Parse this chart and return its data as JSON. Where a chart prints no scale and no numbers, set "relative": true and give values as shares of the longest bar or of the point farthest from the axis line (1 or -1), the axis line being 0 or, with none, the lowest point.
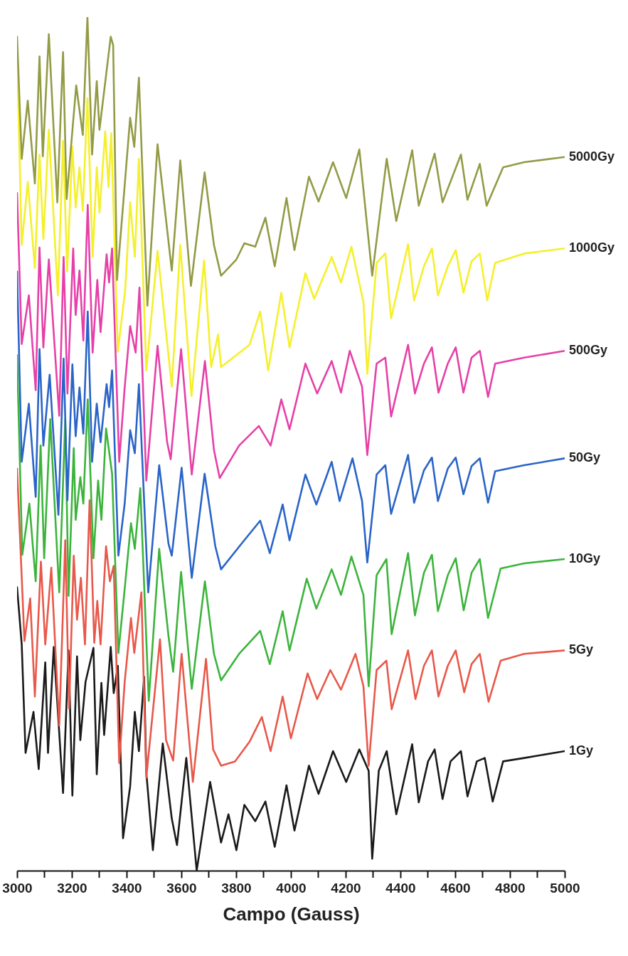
{
  "chart_data": {
    "type": "line",
    "xlabel": "Campo (Gauss)",
    "relative": true,
    "xlim": [
      3000,
      5000
    ],
    "xticks": [
      3000,
      {
        "value": 3100,
        "label": null
      },
      3200,
      {
        "value": 3300,
        "label": null
      },
      3400,
      {
        "value": 3500,
        "label": null
      },
      3600,
      {
        "value": 3700,
        "label": null
      },
      3800,
      {
        "value": 3900,
        "label": null
      },
      4000,
      {
        "value": 4100,
        "label": null
      },
      4200,
      {
        "value": 4300,
        "label": null
      },
      4400,
      {
        "value": 4500,
        "label": null
      },
      4600,
      {
        "value": 4700,
        "label": null
      },
      4800,
      {
        "value": 4900,
        "label": null
      },
      5000
    ],
    "series": [
      {
        "name": "1Gy",
        "color": "#1a1a1a",
        "x": [
          5000,
          4852,
          4775,
          4737,
          4708,
          4679,
          4645,
          4621,
          4583,
          4554,
          4525,
          4501,
          4467,
          4443,
          4385,
          4350,
          4321,
          4297,
          4284,
          4250,
          4202,
          4154,
          4101,
          4066,
          4013,
          3984,
          3941,
          3907,
          3870,
          3830,
          3801,
          3772,
          3745,
          3705,
          3656,
          3618,
          3584,
          3565,
          3532,
          3496,
          3472,
          3464,
          3445,
          3430,
          3413,
          3387,
          3368,
          3353,
          3342,
          3318,
          3308,
          3291,
          3279,
          3250,
          3231,
          3219,
          3202,
          3188,
          3168,
          3134,
          3113,
          3103,
          3079,
          3060,
          3031,
          3017,
          3000
        ],
        "values": [
          0.14,
          0.132,
          0.128,
          0.081,
          0.132,
          0.128,
          0.087,
          0.14,
          0.128,
          0.084,
          0.142,
          0.128,
          0.08,
          0.148,
          0.066,
          0.14,
          0.117,
          0.014,
          0.117,
          0.142,
          0.104,
          0.14,
          0.09,
          0.123,
          0.047,
          0.1,
          0.028,
          0.081,
          0.058,
          0.077,
          0.024,
          0.066,
          0.033,
          0.104,
          0.0,
          0.132,
          0.03,
          0.061,
          0.149,
          0.024,
          0.115,
          0.227,
          0.14,
          0.186,
          0.099,
          0.038,
          0.24,
          0.208,
          0.262,
          0.159,
          0.22,
          0.113,
          0.261,
          0.221,
          0.153,
          0.251,
          0.088,
          0.258,
          0.091,
          0.262,
          0.138,
          0.244,
          0.119,
          0.186,
          0.138,
          0.265,
          0.332
        ]
      },
      {
        "name": "5Gy",
        "color": "#e8584a",
        "x": [
          5000,
          4852,
          4766,
          4722,
          4690,
          4660,
          4633,
          4602,
          4573,
          4539,
          4515,
          4486,
          4455,
          4428,
          4368,
          4349,
          4313,
          4284,
          4265,
          4236,
          4183,
          4144,
          4096,
          4061,
          4000,
          3970,
          3926,
          3894,
          3849,
          3796,
          3745,
          3716,
          3690,
          3642,
          3601,
          3570,
          3544,
          3522,
          3472,
          3454,
          3428,
          3416,
          3393,
          3373,
          3353,
          3339,
          3325,
          3305,
          3293,
          3282,
          3265,
          3248,
          3233,
          3219,
          3207,
          3190,
          3176,
          3154,
          3125,
          3103,
          3087,
          3065,
          3048,
          3027,
          3000
        ],
        "values": [
          0.258,
          0.254,
          0.246,
          0.198,
          0.254,
          0.242,
          0.209,
          0.258,
          0.24,
          0.204,
          0.258,
          0.24,
          0.201,
          0.258,
          0.189,
          0.246,
          0.235,
          0.123,
          0.216,
          0.254,
          0.212,
          0.235,
          0.201,
          0.231,
          0.155,
          0.204,
          0.14,
          0.18,
          0.151,
          0.128,
          0.123,
          0.142,
          0.248,
          0.104,
          0.254,
          0.129,
          0.153,
          0.271,
          0.109,
          0.326,
          0.255,
          0.296,
          0.221,
          0.126,
          0.357,
          0.339,
          0.38,
          0.265,
          0.316,
          0.267,
          0.434,
          0.265,
          0.343,
          0.294,
          0.369,
          0.19,
          0.387,
          0.17,
          0.355,
          0.265,
          0.362,
          0.204,
          0.319,
          0.269,
          0.471
        ]
      },
      {
        "name": "10Gy",
        "color": "#3cb43c",
        "x": [
          5000,
          4852,
          4766,
          4720,
          4690,
          4660,
          4631,
          4602,
          4573,
          4537,
          4515,
          4486,
          4453,
          4428,
          4368,
          4349,
          4313,
          4284,
          4265,
          4221,
          4183,
          4149,
          4093,
          4058,
          3995,
          3970,
          3923,
          3888,
          3811,
          3745,
          3719,
          3686,
          3638,
          3599,
          3570,
          3553,
          3519,
          3481,
          3450,
          3430,
          3416,
          3393,
          3370,
          3347,
          3325,
          3308,
          3296,
          3279,
          3258,
          3242,
          3231,
          3214,
          3207,
          3188,
          3176,
          3154,
          3121,
          3099,
          3086,
          3068,
          3045,
          3019,
          3000
        ],
        "values": [
          0.365,
          0.36,
          0.354,
          0.296,
          0.365,
          0.349,
          0.305,
          0.366,
          0.346,
          0.304,
          0.37,
          0.349,
          0.299,
          0.372,
          0.277,
          0.365,
          0.346,
          0.216,
          0.323,
          0.368,
          0.323,
          0.353,
          0.307,
          0.342,
          0.258,
          0.304,
          0.242,
          0.281,
          0.254,
          0.223,
          0.254,
          0.339,
          0.213,
          0.35,
          0.233,
          0.275,
          0.377,
          0.199,
          0.448,
          0.377,
          0.407,
          0.33,
          0.255,
          0.465,
          0.518,
          0.411,
          0.457,
          0.366,
          0.552,
          0.43,
          0.461,
          0.411,
          0.495,
          0.322,
          0.529,
          0.326,
          0.529,
          0.366,
          0.498,
          0.339,
          0.43,
          0.37,
          0.604
        ]
      },
      {
        "name": "50Gy",
        "color": "#2a64c8",
        "x": [
          5000,
          4852,
          4746,
          4720,
          4690,
          4660,
          4630,
          4602,
          4573,
          4537,
          4515,
          4486,
          4450,
          4428,
          4366,
          4345,
          4313,
          4279,
          4260,
          4225,
          4178,
          4149,
          4093,
          4053,
          3995,
          3970,
          3923,
          3888,
          3822,
          3745,
          3724,
          3685,
          3638,
          3601,
          3565,
          3553,
          3519,
          3479,
          3445,
          3430,
          3413,
          3393,
          3370,
          3347,
          3336,
          3327,
          3305,
          3291,
          3274,
          3258,
          3242,
          3228,
          3214,
          3202,
          3184,
          3170,
          3151,
          3119,
          3096,
          3082,
          3068,
          3043,
          3017,
          3000
        ],
        "values": [
          0.483,
          0.475,
          0.468,
          0.431,
          0.483,
          0.474,
          0.441,
          0.484,
          0.471,
          0.433,
          0.484,
          0.469,
          0.431,
          0.487,
          0.418,
          0.475,
          0.464,
          0.361,
          0.433,
          0.483,
          0.433,
          0.479,
          0.429,
          0.464,
          0.387,
          0.429,
          0.372,
          0.41,
          0.384,
          0.353,
          0.38,
          0.465,
          0.343,
          0.472,
          0.369,
          0.383,
          0.475,
          0.326,
          0.57,
          0.489,
          0.516,
          0.43,
          0.369,
          0.586,
          0.543,
          0.57,
          0.502,
          0.547,
          0.479,
          0.655,
          0.512,
          0.566,
          0.509,
          0.593,
          0.434,
          0.6,
          0.417,
          0.581,
          0.498,
          0.611,
          0.438,
          0.547,
          0.479,
          0.702
        ]
      },
      {
        "name": "500Gy",
        "color": "#e640a8",
        "x": [
          5000,
          4852,
          4746,
          4720,
          4690,
          4660,
          4630,
          4602,
          4573,
          4539,
          4515,
          4486,
          4453,
          4428,
          4366,
          4345,
          4313,
          4279,
          4260,
          4215,
          4183,
          4149,
          4096,
          4053,
          3995,
          3965,
          3926,
          3883,
          3811,
          3740,
          3719,
          3686,
          3638,
          3599,
          3561,
          3548,
          3513,
          3472,
          3447,
          3433,
          3413,
          3393,
          3373,
          3347,
          3336,
          3327,
          3305,
          3293,
          3276,
          3258,
          3242,
          3228,
          3214,
          3205,
          3184,
          3170,
          3154,
          3116,
          3096,
          3082,
          3068,
          3043,
          3017,
          3000
        ],
        "values": [
          0.609,
          0.601,
          0.594,
          0.555,
          0.609,
          0.601,
          0.56,
          0.613,
          0.594,
          0.56,
          0.613,
          0.594,
          0.559,
          0.616,
          0.532,
          0.601,
          0.594,
          0.487,
          0.567,
          0.609,
          0.56,
          0.597,
          0.559,
          0.594,
          0.517,
          0.552,
          0.498,
          0.521,
          0.498,
          0.46,
          0.493,
          0.597,
          0.464,
          0.611,
          0.482,
          0.502,
          0.615,
          0.457,
          0.683,
          0.607,
          0.638,
          0.566,
          0.479,
          0.729,
          0.689,
          0.722,
          0.631,
          0.692,
          0.607,
          0.78,
          0.621,
          0.703,
          0.651,
          0.729,
          0.559,
          0.719,
          0.533,
          0.716,
          0.613,
          0.73,
          0.563,
          0.674,
          0.617,
          0.794
        ]
      },
      {
        "name": "1000Gy",
        "color": "#f5f02a",
        "x": [
          5000,
          4852,
          4746,
          4717,
          4690,
          4660,
          4630,
          4602,
          4573,
          4537,
          4515,
          4486,
          4450,
          4428,
          4366,
          4345,
          4313,
          4279,
          4265,
          4221,
          4183,
          4149,
          4085,
          4053,
          3995,
          3965,
          3917,
          3888,
          3849,
          3745,
          3734,
          3709,
          3683,
          3637,
          3596,
          3565,
          3544,
          3513,
          3472,
          3445,
          3430,
          3413,
          3395,
          3368,
          3344,
          3334,
          3322,
          3301,
          3291,
          3276,
          3257,
          3240,
          3228,
          3214,
          3202,
          3183,
          3168,
          3149,
          3116,
          3096,
          3082,
          3065,
          3039,
          3017,
          3000
        ],
        "values": [
          0.729,
          0.723,
          0.712,
          0.668,
          0.723,
          0.714,
          0.677,
          0.727,
          0.708,
          0.674,
          0.729,
          0.708,
          0.668,
          0.734,
          0.647,
          0.723,
          0.712,
          0.582,
          0.666,
          0.731,
          0.689,
          0.719,
          0.67,
          0.7,
          0.613,
          0.677,
          0.586,
          0.655,
          0.616,
          0.59,
          0.628,
          0.59,
          0.715,
          0.556,
          0.733,
          0.567,
          0.631,
          0.726,
          0.586,
          0.834,
          0.719,
          0.783,
          0.681,
          0.608,
          0.864,
          0.801,
          0.866,
          0.771,
          0.824,
          0.719,
          0.905,
          0.773,
          0.824,
          0.777,
          0.848,
          0.702,
          0.855,
          0.674,
          0.868,
          0.74,
          0.839,
          0.706,
          0.807,
          0.733,
          0.957
        ]
      },
      {
        "name": "5000Gy",
        "color": "#939b45",
        "x": [
          5000,
          4852,
          4775,
          4715,
          4690,
          4645,
          4621,
          4554,
          4525,
          4467,
          4443,
          4385,
          4350,
          4297,
          4250,
          4202,
          4154,
          4101,
          4066,
          4013,
          3984,
          3941,
          3907,
          3870,
          3830,
          3801,
          3745,
          3719,
          3685,
          3635,
          3596,
          3565,
          3513,
          3476,
          3445,
          3428,
          3413,
          3365,
          3351,
          3342,
          3301,
          3291,
          3274,
          3257,
          3240,
          3216,
          3181,
          3168,
          3147,
          3116,
          3094,
          3082,
          3065,
          3039,
          3017,
          3000
        ],
        "values": [
          0.836,
          0.83,
          0.824,
          0.779,
          0.828,
          0.786,
          0.839,
          0.783,
          0.84,
          0.779,
          0.844,
          0.761,
          0.834,
          0.697,
          0.845,
          0.788,
          0.83,
          0.784,
          0.813,
          0.727,
          0.788,
          0.708,
          0.765,
          0.731,
          0.735,
          0.716,
          0.697,
          0.733,
          0.818,
          0.685,
          0.832,
          0.703,
          0.851,
          0.662,
          0.929,
          0.848,
          0.882,
          0.692,
          0.967,
          0.977,
          0.868,
          0.925,
          0.839,
          1.0,
          0.862,
          0.92,
          0.787,
          0.959,
          0.783,
          0.98,
          0.837,
          0.954,
          0.805,
          0.902,
          0.834,
          0.977
        ]
      }
    ]
  }
}
